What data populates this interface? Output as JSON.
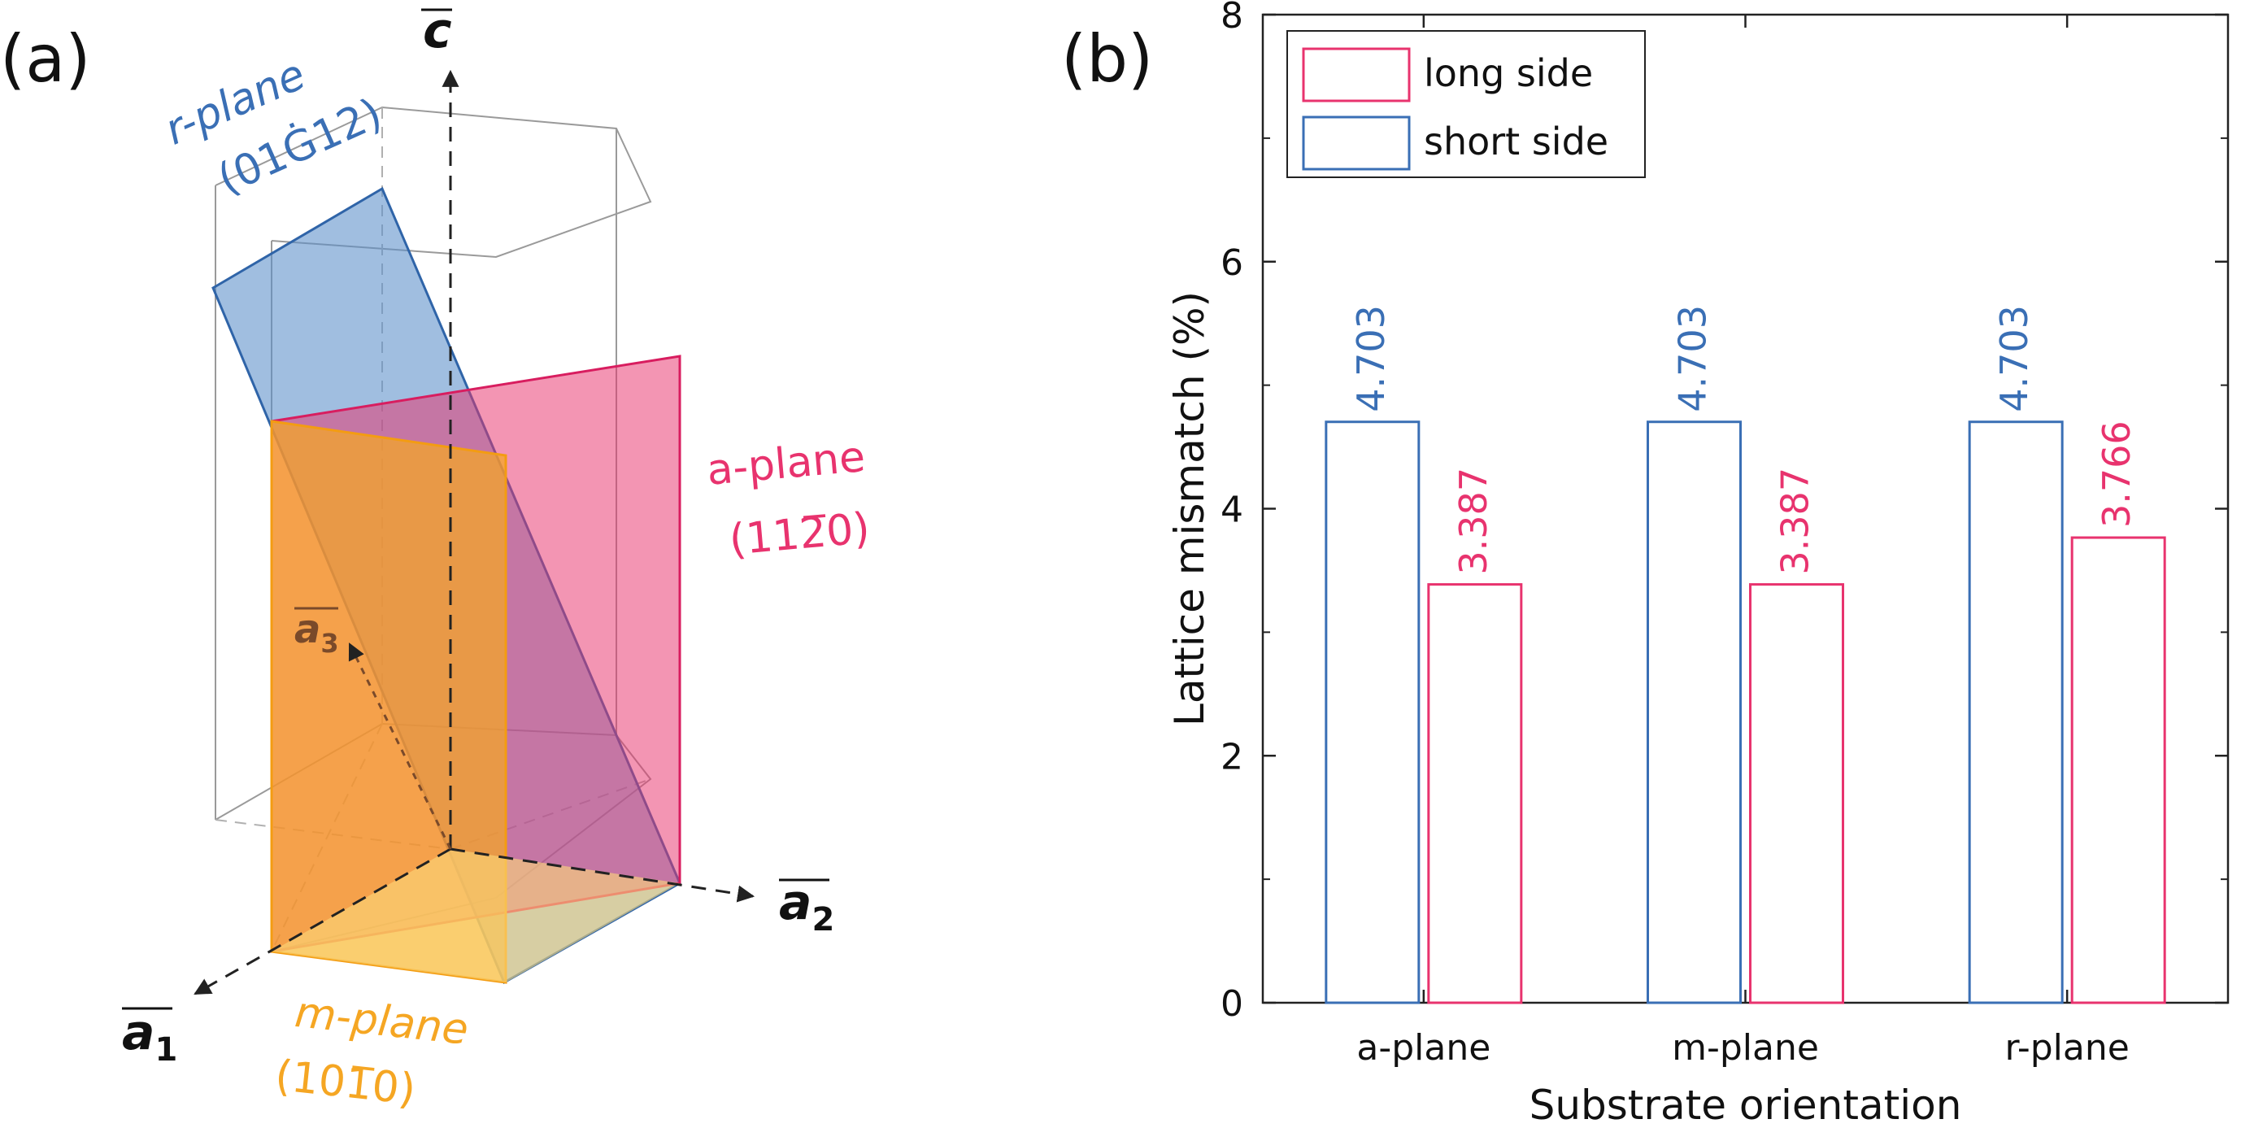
{
  "panel_a": {
    "label": "(a)",
    "axes": {
      "c": "c",
      "a1": "a",
      "a1_sub": "1",
      "a2": "a",
      "a2_sub": "2",
      "a3": "a",
      "a3_sub": "3"
    },
    "planes": {
      "r": {
        "name": "r-plane",
        "index": "(01Ġ12)",
        "color": "#5b8fc9"
      },
      "a": {
        "name": "a-plane",
        "index": "(112̅0)",
        "color": "#e8336e"
      },
      "m": {
        "name": "m-plane",
        "index": "(101̅0)",
        "color": "#f5a623"
      }
    }
  },
  "panel_b": {
    "label": "(b)"
  },
  "chart_data": {
    "type": "bar",
    "categories": [
      "a-plane",
      "m-plane",
      "r-plane"
    ],
    "series": [
      {
        "name": "short side",
        "values": [
          4.703,
          4.703,
          4.703
        ],
        "color": "#3a6fb5",
        "labels": [
          "4.703",
          "4.703",
          "4.703"
        ]
      },
      {
        "name": "long side",
        "values": [
          3.387,
          3.387,
          3.766
        ],
        "color": "#e8336e",
        "labels": [
          "3.387",
          "3.387",
          "3.766"
        ]
      }
    ],
    "legend_order": [
      "long side",
      "short side"
    ],
    "legend_position": "top-left",
    "xlabel": "Substrate orientation",
    "ylabel": "Lattice mismatch (%)",
    "ylim": [
      0,
      8
    ],
    "yticks": [
      "0",
      "2",
      "4",
      "6",
      "8"
    ]
  }
}
